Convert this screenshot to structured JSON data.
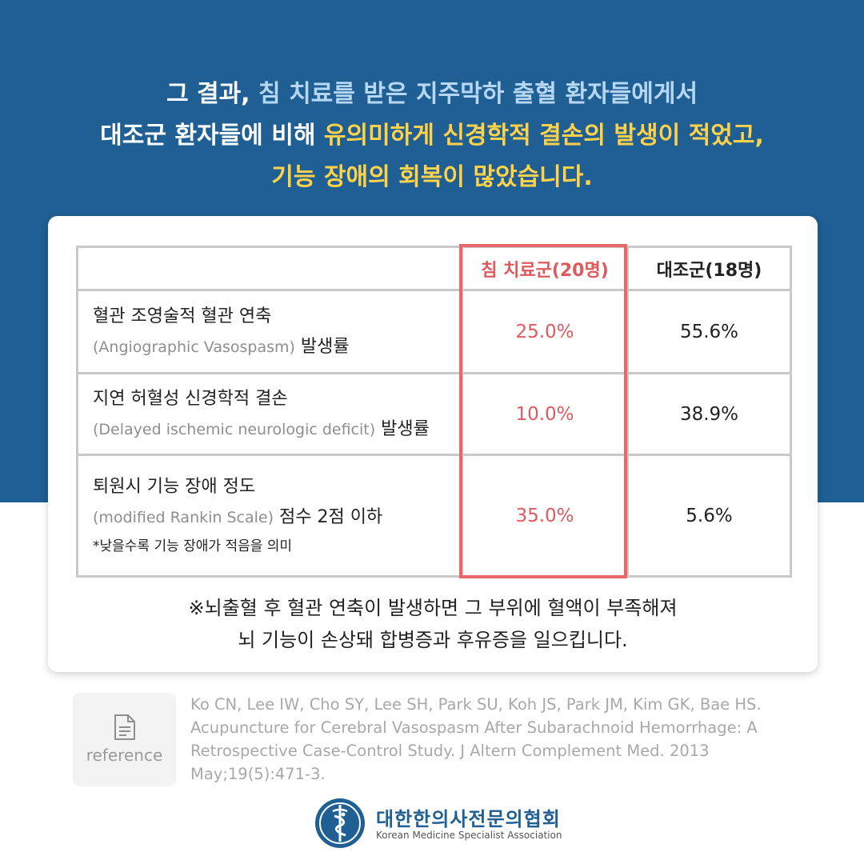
{
  "headline": {
    "line1_plain": "그 결과, ",
    "line1_blue": "침 치료를 받은 지주막하 출혈 환자들에게서",
    "line2_plain": "대조군 환자들에 비해 ",
    "line2_yellow": "유의미하게 신경학적 결손의 발생이 적었고,",
    "line3_yellow": "기능 장애의 회복이 많았습니다."
  },
  "table": {
    "header_acu": "침 치료군(20명)",
    "header_ctrl": "대조군(18명)",
    "rows": [
      {
        "label_ko": "혈관 조영술적 혈관 연축",
        "label_en": "(Angiographic Vasospasm)",
        "label_suffix": " 발생률",
        "acu": "25.0%",
        "ctrl": "55.6%"
      },
      {
        "label_ko": "지연 허혈성 신경학적 결손",
        "label_en": "(Delayed ischemic neurologic deficit)",
        "label_suffix": " 발생률",
        "acu": "10.0%",
        "ctrl": "38.9%"
      },
      {
        "label_ko": "퇴원시 기능 장애 정도",
        "label_en": "(modified Rankin Scale)",
        "label_suffix": " 점수 2점 이하",
        "note": "*낮을수록 기능 장애가 적음을 의미",
        "acu": "35.0%",
        "ctrl": "5.6%"
      }
    ]
  },
  "footnote": {
    "line1": "※뇌출혈 후 혈관 연축이 발생하면 그 부위에 혈액이 부족해져",
    "line2": "뇌 기능이 손상돼 합병증과 후유증을 일으킵니다."
  },
  "reference": {
    "label": "reference",
    "icon": "document-icon",
    "citation": "Ko CN, Lee IW, Cho SY, Lee SH, Park SU, Koh JS, Park JM, Kim GK, Bae HS. Acupuncture for Cerebral Vasospasm After Subarachnoid Hemorrhage: A Retrospective Case-Control Study. J Altern Complement Med. 2013 May;19(5):471-3."
  },
  "logo": {
    "name_ko": "대한한의사전문의협회",
    "name_en": "Korean Medicine Specialist Association",
    "icon": "caduceus-icon"
  },
  "colors": {
    "top_background": "#1f5f93",
    "highlight_blue": "#b5d7f2",
    "highlight_yellow": "#ffd24a",
    "acu_red": "#e0595c",
    "border_grey": "#c9c9c9"
  }
}
